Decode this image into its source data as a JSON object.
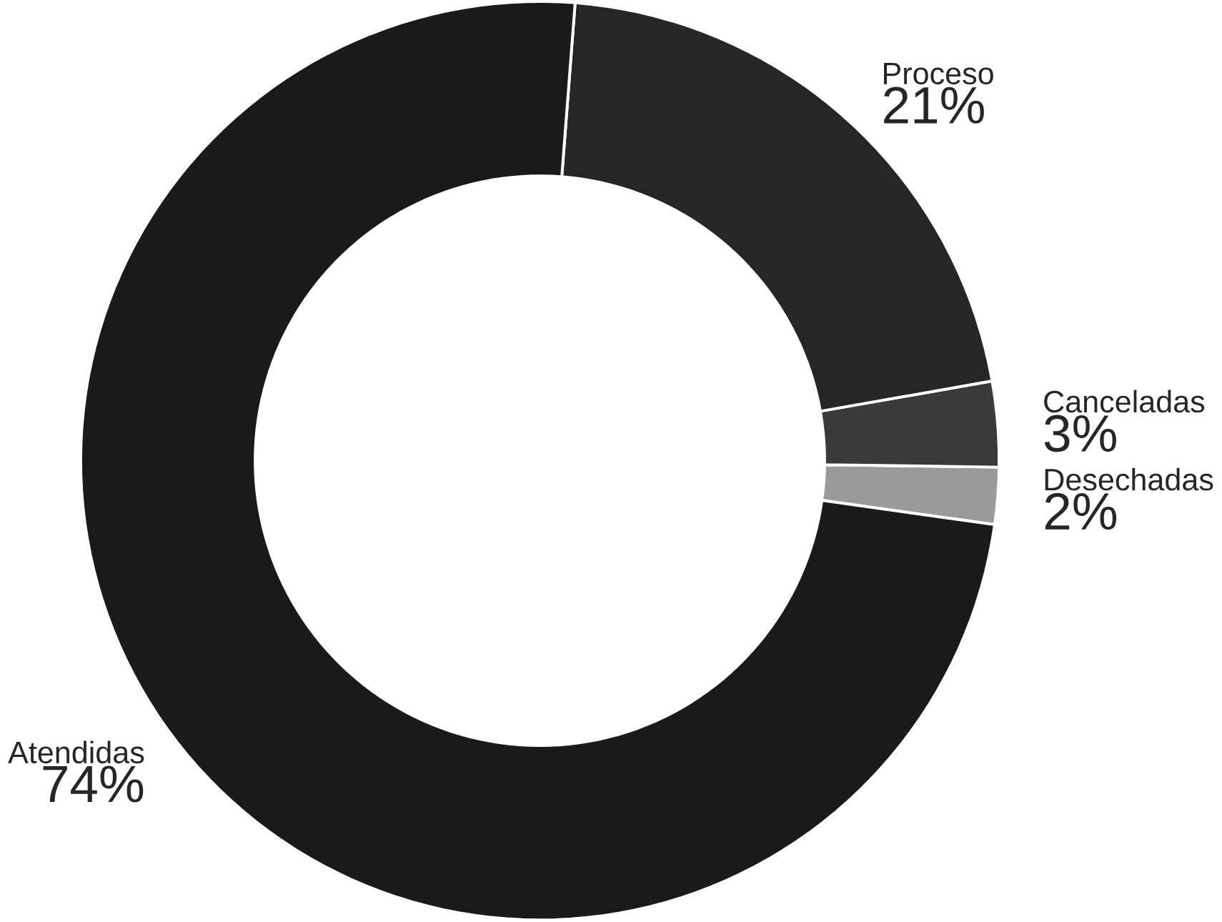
{
  "chart_data": {
    "type": "donut",
    "categories": [
      "Desechadas",
      "Canceladas",
      "Proceso",
      "Atendidas"
    ],
    "values": [
      2,
      3,
      21,
      74
    ],
    "value_labels": [
      "2%",
      "3%",
      "21%",
      "74%"
    ],
    "colors": [
      "#9a9a9a",
      "#3a3a3a",
      "#262626",
      "#1a1a1a"
    ]
  }
}
